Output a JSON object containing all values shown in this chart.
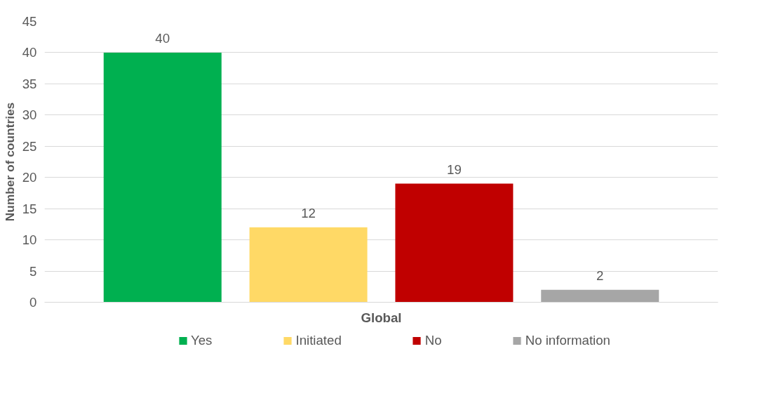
{
  "chart_data": {
    "type": "bar",
    "ylabel": "Number of countries",
    "categories": [
      "Global"
    ],
    "series": [
      {
        "name": "Yes",
        "color": "#00b050",
        "values": [
          40
        ]
      },
      {
        "name": "Initiated",
        "color": "#ffd966",
        "values": [
          12
        ]
      },
      {
        "name": "No",
        "color": "#c00000",
        "values": [
          19
        ]
      },
      {
        "name": "No information",
        "color": "#a6a6a6",
        "values": [
          2
        ]
      }
    ],
    "ylim": [
      0,
      45
    ],
    "yticks": [
      0,
      5,
      10,
      15,
      20,
      25,
      30,
      35,
      40,
      45
    ],
    "grid": "y",
    "legend": "bottom",
    "data_labels": true
  }
}
